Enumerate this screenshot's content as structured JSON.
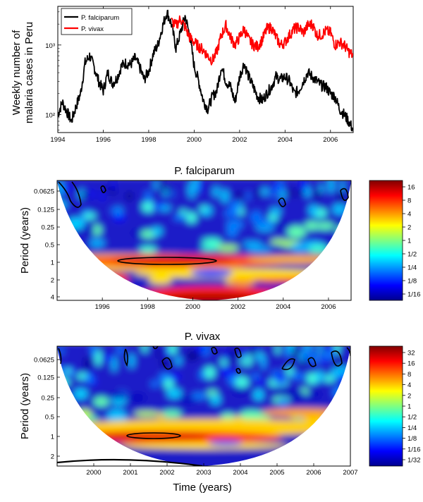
{
  "chart_data": [
    {
      "type": "line",
      "ylabel_lines": [
        "Weekly number of",
        "malaria cases in Peru"
      ],
      "yscale": "log",
      "xlim": [
        1994,
        2007
      ],
      "ylim": [
        55,
        3600
      ],
      "x_ticks": [
        "1994",
        "1996",
        "1998",
        "2000",
        "2002",
        "2004",
        "2006"
      ],
      "y_ticks": [
        {
          "value": 100,
          "label": "10²"
        },
        {
          "value": 1000,
          "label": "10³"
        }
      ],
      "legend_position": "top-left",
      "series": [
        {
          "name": "P. falciparum",
          "color": "#000000",
          "x": [
            1994.0,
            1994.2,
            1994.4,
            1994.6,
            1994.8,
            1995.0,
            1995.2,
            1995.4,
            1995.6,
            1995.8,
            1996.0,
            1996.2,
            1996.4,
            1996.6,
            1996.8,
            1997.0,
            1997.2,
            1997.4,
            1997.6,
            1997.8,
            1998.0,
            1998.2,
            1998.4,
            1998.6,
            1998.8,
            1999.0,
            1999.2,
            1999.4,
            1999.6,
            1999.8,
            2000.0,
            2000.2,
            2000.4,
            2000.6,
            2000.8,
            2001.0,
            2001.2,
            2001.4,
            2001.6,
            2001.8,
            2002.0,
            2002.2,
            2002.4,
            2002.6,
            2002.8,
            2003.0,
            2003.2,
            2003.4,
            2003.6,
            2003.8,
            2004.0,
            2004.2,
            2004.4,
            2004.6,
            2004.8,
            2005.0,
            2005.2,
            2005.4,
            2005.6,
            2005.8,
            2006.0,
            2006.2,
            2006.4,
            2006.6,
            2006.8,
            2007.0
          ],
          "y": [
            100,
            150,
            110,
            80,
            130,
            200,
            550,
            700,
            480,
            300,
            220,
            400,
            280,
            330,
            500,
            550,
            520,
            650,
            480,
            320,
            420,
            750,
            1000,
            1800,
            3000,
            2000,
            900,
            1500,
            2600,
            1400,
            500,
            300,
            160,
            120,
            180,
            220,
            500,
            300,
            250,
            150,
            350,
            550,
            350,
            250,
            180,
            160,
            200,
            250,
            350,
            320,
            350,
            300,
            200,
            220,
            300,
            400,
            350,
            300,
            260,
            250,
            200,
            180,
            120,
            100,
            80,
            60
          ]
        },
        {
          "name": "P. vivax",
          "color": "#ff0000",
          "x": [
            1999.0,
            1999.2,
            1999.4,
            1999.6,
            1999.8,
            2000.0,
            2000.2,
            2000.4,
            2000.6,
            2000.8,
            2001.0,
            2001.2,
            2001.4,
            2001.6,
            2001.8,
            2002.0,
            2002.2,
            2002.4,
            2002.6,
            2002.8,
            2003.0,
            2003.2,
            2003.4,
            2003.6,
            2003.8,
            2004.0,
            2004.2,
            2004.4,
            2004.6,
            2004.8,
            2005.0,
            2005.2,
            2005.4,
            2005.6,
            2005.8,
            2006.0,
            2006.2,
            2006.4,
            2006.6,
            2006.8,
            2007.0
          ],
          "y": [
            2200,
            1900,
            2400,
            1800,
            1300,
            1100,
            950,
            850,
            700,
            600,
            800,
            1400,
            1900,
            1300,
            1000,
            1300,
            1700,
            1200,
            1000,
            950,
            1200,
            1700,
            1800,
            1300,
            1000,
            1100,
            1400,
            1700,
            1800,
            1500,
            1900,
            2000,
            1400,
            1400,
            1600,
            1500,
            1000,
            1100,
            1000,
            800,
            700
          ]
        }
      ]
    },
    {
      "type": "heatmap",
      "title": "P. falciparum",
      "ylabel": "Period (years)",
      "xlim": [
        1994,
        2007
      ],
      "x_ticks": [
        "1996",
        "1998",
        "2000",
        "2002",
        "2004",
        "2006"
      ],
      "y_ticks": [
        "0.0625",
        "0.125",
        "0.25",
        "0.5",
        "1",
        "2",
        "4"
      ],
      "colorbar_ticks": [
        "16",
        "8",
        "4",
        "2",
        "1",
        "1/2",
        "1/4",
        "1/8",
        "1/16"
      ],
      "colormap": [
        "#00008f",
        "#0000ff",
        "#0080ff",
        "#00ffff",
        "#80ff80",
        "#ffff00",
        "#ff8000",
        "#ff0000",
        "#800000"
      ],
      "high_power_band_period_years": 1,
      "significance_contours_center_year": 1999.2
    },
    {
      "type": "heatmap",
      "title": "P. vivax",
      "ylabel": "Period (years)",
      "xlabel": "Time (years)",
      "xlim": [
        1999,
        2007
      ],
      "x_ticks": [
        "2000",
        "2001",
        "2002",
        "2003",
        "2004",
        "2005",
        "2006",
        "2007"
      ],
      "y_ticks": [
        "0.0625",
        "0.125",
        "0.25",
        "0.5",
        "1",
        "2"
      ],
      "colorbar_ticks": [
        "32",
        "16",
        "8",
        "4",
        "2",
        "1",
        "1/2",
        "1/4",
        "1/8",
        "1/16",
        "1/32"
      ],
      "colormap": [
        "#00008f",
        "#0000ff",
        "#0080ff",
        "#00ffff",
        "#80ff80",
        "#ffff00",
        "#ff8000",
        "#ff0000",
        "#800000"
      ],
      "high_power_band_period_years": 1,
      "significance_contours_center_year": 2001.5
    }
  ]
}
